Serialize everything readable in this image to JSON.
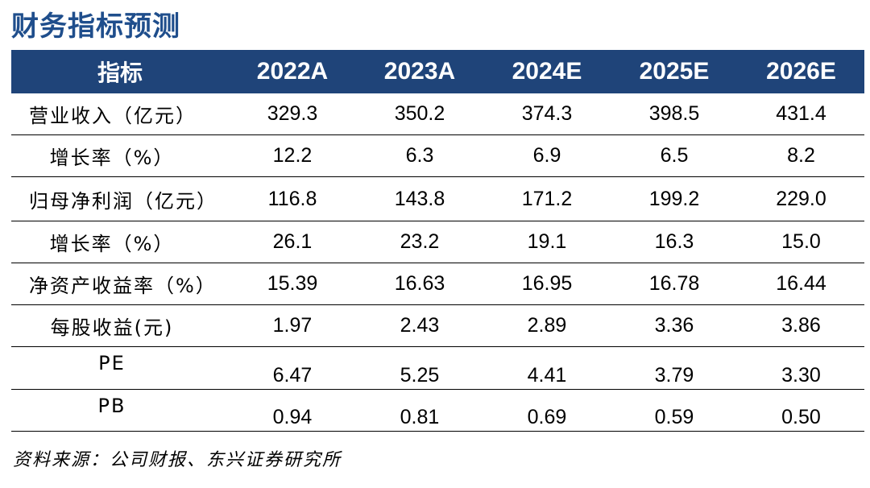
{
  "title": "财务指标预测",
  "header": {
    "label": "指标",
    "years": [
      "2022A",
      "2023A",
      "2024E",
      "2025E",
      "2026E"
    ]
  },
  "rows": [
    {
      "label": "营业收入（亿元）",
      "values": [
        "329.3",
        "350.2",
        "374.3",
        "398.5",
        "431.4"
      ]
    },
    {
      "label": "增长率（%）",
      "values": [
        "12.2",
        "6.3",
        "6.9",
        "6.5",
        "8.2"
      ]
    },
    {
      "label": "归母净利润（亿元）",
      "values": [
        "116.8",
        "143.8",
        "171.2",
        "199.2",
        "229.0"
      ]
    },
    {
      "label": "增长率（%）",
      "values": [
        "26.1",
        "23.2",
        "19.1",
        "16.3",
        "15.0"
      ]
    },
    {
      "label": "净资产收益率（%）",
      "values": [
        "15.39",
        "16.63",
        "16.95",
        "16.78",
        "16.44"
      ]
    },
    {
      "label": "每股收益(元)",
      "values": [
        "1.97",
        "2.43",
        "2.89",
        "3.36",
        "3.86"
      ]
    },
    {
      "label": "PE",
      "values": [
        "6.47",
        "5.25",
        "4.41",
        "3.79",
        "3.30"
      ]
    },
    {
      "label": "PB",
      "values": [
        "0.94",
        "0.81",
        "0.69",
        "0.59",
        "0.50"
      ]
    }
  ],
  "source": "资料来源：公司财报、东兴证券研究所",
  "colors": {
    "title": "#1f4e8c",
    "header_bg": "#1f4479",
    "header_text": "#ffffff"
  }
}
